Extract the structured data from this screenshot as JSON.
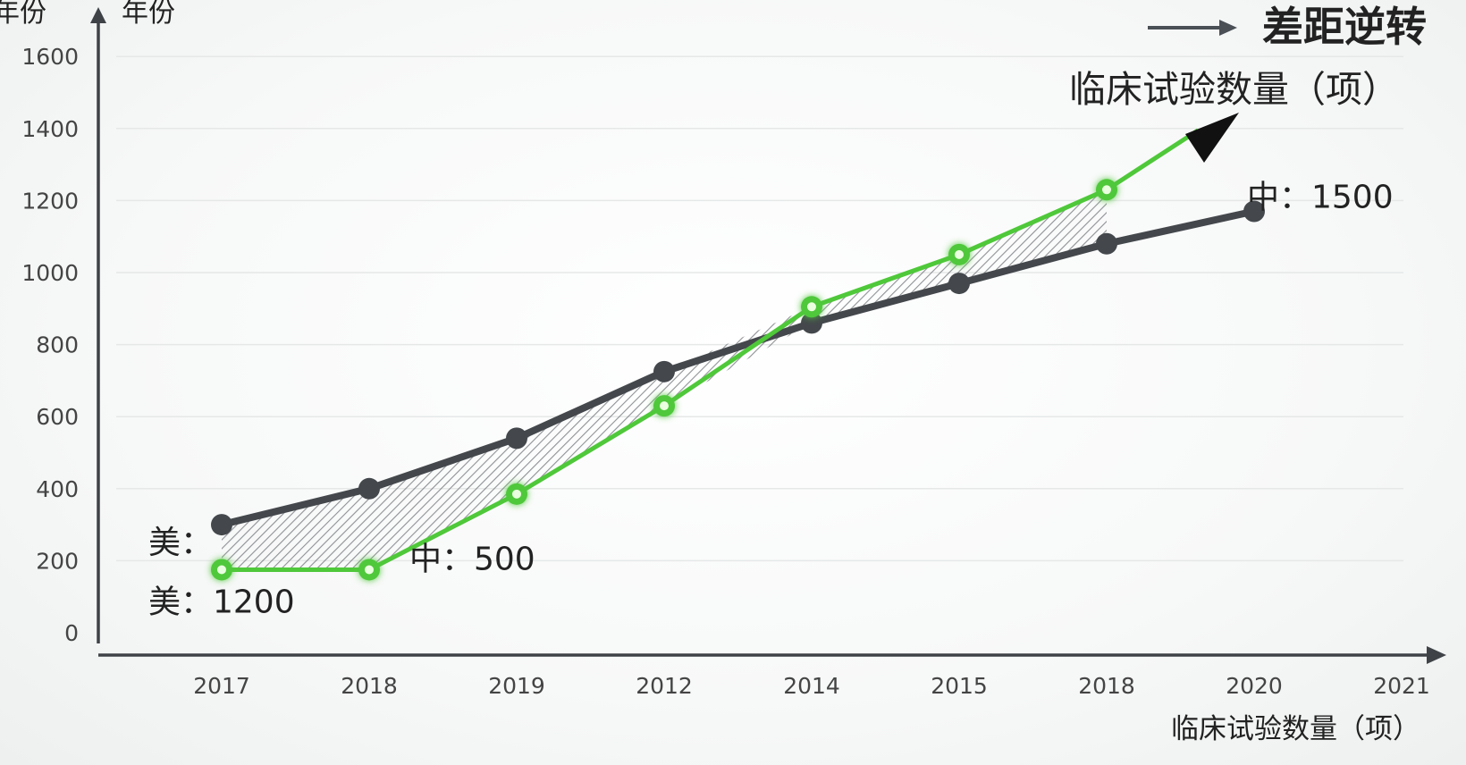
{
  "chart_data": {
    "type": "line",
    "title": "差距逆转",
    "xlabel": "临床试验数量（项）",
    "ylabel": "年份",
    "top_left_label": "年份",
    "trend_label": "临床试验数量（项）",
    "categories": [
      "2017",
      "2018",
      "2019",
      "2012",
      "2014",
      "2015",
      "2018",
      "2020",
      "2021"
    ],
    "yticks": [
      "0",
      "200",
      "400",
      "600",
      "800",
      "1000",
      "1200",
      "1400",
      "1600"
    ],
    "ylim": [
      0,
      1600
    ],
    "grid": true,
    "series": [
      {
        "color": "#44484c",
        "values": [
          300,
          400,
          540,
          725,
          860,
          970,
          1080,
          1170,
          null
        ]
      },
      {
        "color": "#4fc83a",
        "values": [
          175,
          175,
          385,
          630,
          905,
          1050,
          1230,
          null,
          null
        ]
      }
    ],
    "trend_arrow_to_y": 1395,
    "annotations": [
      {
        "text": "美：",
        "series": 0,
        "point": 0
      },
      {
        "text": "美：1200",
        "series": 1,
        "point": 0
      },
      {
        "text": "中：500",
        "series": 1,
        "point": 1
      },
      {
        "text": "中：1500",
        "series": 0,
        "point": 7
      }
    ]
  }
}
